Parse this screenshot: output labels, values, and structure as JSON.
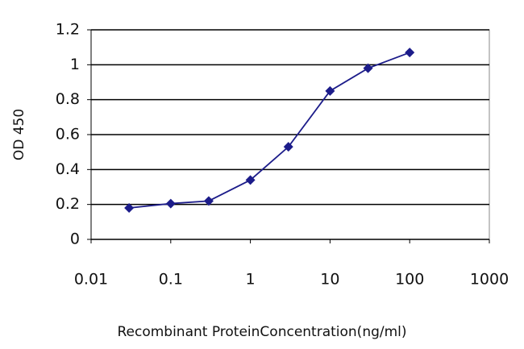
{
  "chart_data": {
    "type": "line",
    "x_label": "Recombinant ProteinConcentration(ng/ml)",
    "y_label": "OD 450",
    "x_log": true,
    "xlim": [
      0.01,
      1000
    ],
    "xticks": [
      0.01,
      0.1,
      1,
      10,
      100,
      1000
    ],
    "ylim": [
      0,
      1.2
    ],
    "yticks": [
      0,
      0.2,
      0.4,
      0.6,
      0.8,
      1,
      1.2
    ],
    "grid": true,
    "series": [
      {
        "color": "#1c1c8a",
        "x": [
          0.03,
          0.1,
          0.3,
          1,
          3,
          10,
          30,
          100
        ],
        "values": [
          0.18,
          0.205,
          0.22,
          0.34,
          0.53,
          0.85,
          0.98,
          1.07
        ]
      }
    ]
  }
}
